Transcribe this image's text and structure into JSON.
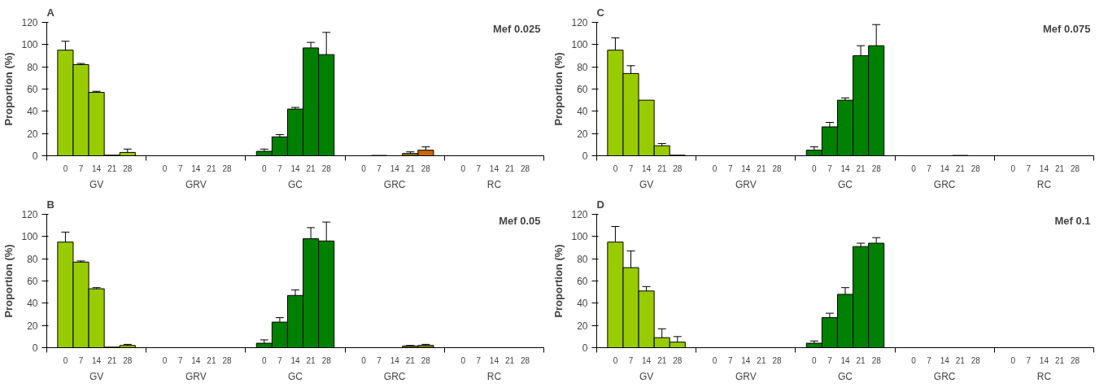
{
  "chart_data": [
    {
      "type": "bar",
      "title": "Mef 0.025",
      "ylabel": "Proportion (%)",
      "annotations": [
        "A",
        "GV",
        "GRV",
        "GC",
        "GRC",
        "RC"
      ],
      "categories": [
        "0",
        "7",
        "14",
        "21",
        "28",
        "0",
        "7",
        "14",
        "21",
        "28",
        "0",
        "7",
        "14",
        "21",
        "28",
        "0",
        "7",
        "14",
        "21",
        "28",
        "0",
        "7",
        "14",
        "21",
        "28"
      ],
      "values": [
        95,
        82,
        57,
        0.5,
        3,
        0,
        0,
        0,
        0,
        0,
        4,
        17,
        42,
        97,
        91,
        0,
        0.3,
        0,
        2,
        5,
        0,
        0,
        0,
        0,
        0
      ],
      "errors": [
        8,
        1,
        1,
        null,
        3,
        null,
        null,
        null,
        null,
        null,
        2,
        2,
        1.5,
        5,
        20,
        null,
        null,
        null,
        1.5,
        3,
        null,
        null,
        null,
        null,
        null
      ],
      "colors": [
        "#99cc00",
        "#99cc00",
        "#99cc00",
        "#99cc00",
        "#99cc00",
        "#99cc00",
        "#99cc00",
        "#99cc00",
        "#99cc00",
        "#99cc00",
        "#008000",
        "#008000",
        "#008000",
        "#008000",
        "#008000",
        "#808000",
        "#808000",
        "#808000",
        "#808000",
        "#cc6600",
        "#cc6600",
        "#cc6600",
        "#cc6600",
        "#cc6600",
        "#cc6600"
      ],
      "ylim": [
        0,
        120
      ],
      "yticks": [
        0,
        20,
        40,
        60,
        80,
        100,
        120
      ],
      "grid": false
    },
    {
      "type": "bar",
      "title": "Mef 0.075",
      "ylabel": "Proportion (%)",
      "annotations": [
        "C",
        "GV",
        "GRV",
        "GC",
        "GRC",
        "RC"
      ],
      "categories": [
        "0",
        "7",
        "14",
        "21",
        "28",
        "0",
        "7",
        "14",
        "21",
        "28",
        "0",
        "7",
        "14",
        "21",
        "28",
        "0",
        "7",
        "14",
        "21",
        "28",
        "0",
        "7",
        "14",
        "21",
        "28"
      ],
      "values": [
        95,
        74,
        50,
        9,
        0.5,
        0,
        0,
        0,
        0,
        0,
        5,
        26,
        50,
        90,
        99,
        0,
        0,
        0,
        0.3,
        0,
        0,
        0,
        0,
        0,
        0
      ],
      "errors": [
        11,
        7,
        null,
        2,
        null,
        null,
        null,
        null,
        null,
        null,
        3,
        4,
        2,
        9,
        19,
        null,
        null,
        null,
        null,
        null,
        null,
        null,
        null,
        null,
        null
      ],
      "colors": [
        "#99cc00",
        "#99cc00",
        "#99cc00",
        "#99cc00",
        "#99cc00",
        "#99cc00",
        "#99cc00",
        "#99cc00",
        "#99cc00",
        "#99cc00",
        "#008000",
        "#008000",
        "#008000",
        "#008000",
        "#008000",
        "#808000",
        "#808000",
        "#808000",
        "#808000",
        "#cc6600",
        "#cc6600",
        "#cc6600",
        "#cc6600",
        "#cc6600",
        "#cc6600"
      ],
      "ylim": [
        0,
        120
      ],
      "yticks": [
        0,
        20,
        40,
        60,
        80,
        100,
        120
      ],
      "grid": false
    },
    {
      "type": "bar",
      "title": "Mef 0.05",
      "ylabel": "Proportion (%)",
      "annotations": [
        "B",
        "GV",
        "GRV",
        "GC",
        "GRC",
        "RC"
      ],
      "categories": [
        "0",
        "7",
        "14",
        "21",
        "28",
        "0",
        "7",
        "14",
        "21",
        "28",
        "0",
        "7",
        "14",
        "21",
        "28",
        "0",
        "7",
        "14",
        "21",
        "28",
        "0",
        "7",
        "14",
        "21",
        "28"
      ],
      "values": [
        95,
        77,
        53,
        0.5,
        2,
        0,
        0,
        0,
        0,
        0,
        4,
        23,
        47,
        98,
        96,
        0,
        0,
        0,
        1.5,
        2,
        0,
        0,
        0,
        0,
        0
      ],
      "errors": [
        9,
        1,
        1,
        null,
        1,
        null,
        null,
        null,
        null,
        null,
        3,
        4,
        5,
        10,
        17,
        null,
        null,
        null,
        0.5,
        1,
        null,
        null,
        null,
        null,
        null
      ],
      "colors": [
        "#99cc00",
        "#99cc00",
        "#99cc00",
        "#99cc00",
        "#99cc00",
        "#99cc00",
        "#99cc00",
        "#99cc00",
        "#99cc00",
        "#99cc00",
        "#008000",
        "#008000",
        "#008000",
        "#008000",
        "#008000",
        "#808000",
        "#808000",
        "#808000",
        "#808000",
        "#808000",
        "#cc6600",
        "#cc6600",
        "#cc6600",
        "#cc6600",
        "#cc6600"
      ],
      "ylim": [
        0,
        120
      ],
      "yticks": [
        0,
        20,
        40,
        60,
        80,
        100,
        120
      ],
      "grid": false
    },
    {
      "type": "bar",
      "title": "Mef 0.1",
      "ylabel": "Proportion (%)",
      "annotations": [
        "D",
        "GV",
        "GRV",
        "GC",
        "GRC",
        "RC"
      ],
      "categories": [
        "0",
        "7",
        "14",
        "21",
        "28",
        "0",
        "7",
        "14",
        "21",
        "28",
        "0",
        "7",
        "14",
        "21",
        "28",
        "0",
        "7",
        "14",
        "21",
        "28",
        "0",
        "7",
        "14",
        "21",
        "28"
      ],
      "values": [
        95,
        72,
        51,
        9,
        5,
        0,
        0,
        0,
        0,
        0,
        4,
        27,
        48,
        91,
        94,
        0,
        0,
        0,
        0,
        0,
        0,
        0,
        0,
        0,
        0
      ],
      "errors": [
        14,
        15,
        4,
        8,
        5,
        null,
        null,
        null,
        null,
        null,
        2,
        4,
        6,
        3,
        5,
        null,
        null,
        null,
        null,
        null,
        null,
        null,
        null,
        null,
        null
      ],
      "colors": [
        "#99cc00",
        "#99cc00",
        "#99cc00",
        "#99cc00",
        "#99cc00",
        "#99cc00",
        "#99cc00",
        "#99cc00",
        "#99cc00",
        "#99cc00",
        "#008000",
        "#008000",
        "#008000",
        "#008000",
        "#008000",
        "#808000",
        "#808000",
        "#808000",
        "#808000",
        "#cc6600",
        "#cc6600",
        "#cc6600",
        "#cc6600",
        "#cc6600",
        "#cc6600"
      ],
      "ylim": [
        0,
        120
      ],
      "yticks": [
        0,
        20,
        40,
        60,
        80,
        100,
        120
      ],
      "grid": false
    }
  ]
}
